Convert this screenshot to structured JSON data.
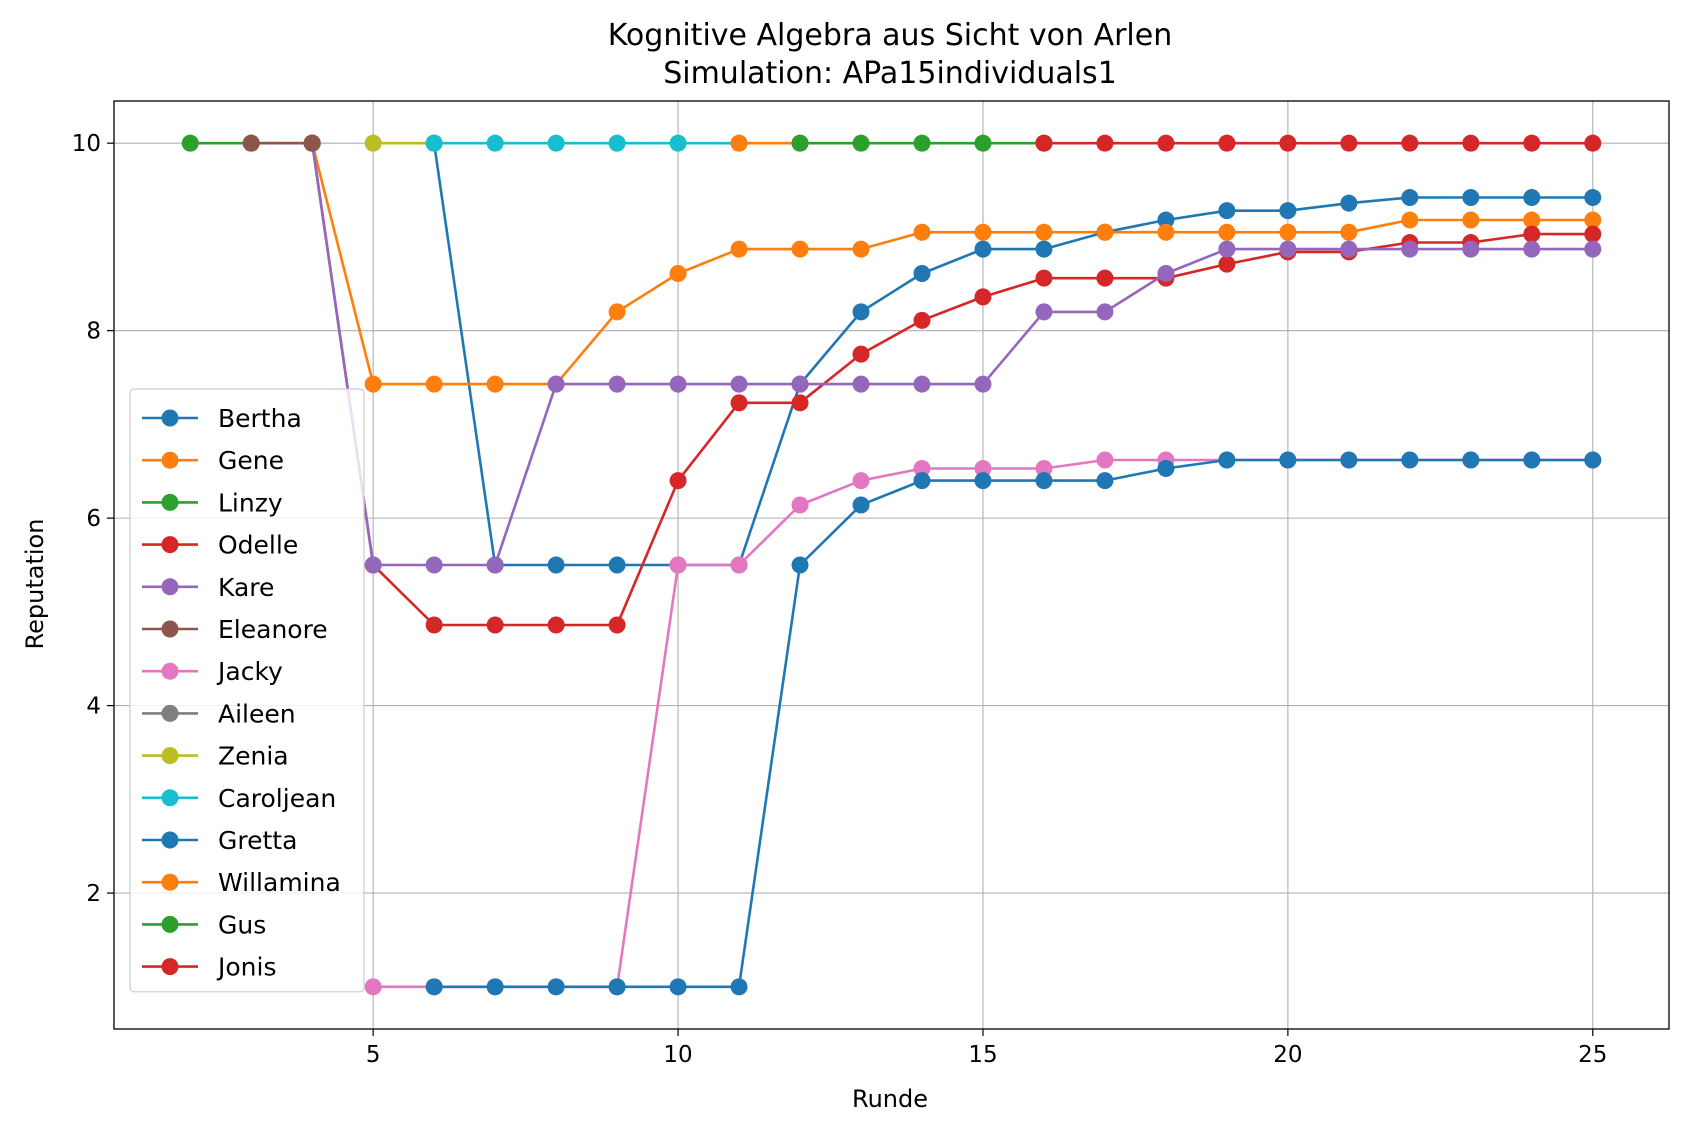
{
  "chart_data": {
    "type": "line",
    "title": "Kognitive Algebra aus Sicht von Arlen",
    "subtitle": "Simulation: APa15individuals1",
    "xlabel": "Runde",
    "ylabel": "Reputation",
    "xlim": [
      0.75,
      26.25
    ],
    "ylim": [
      0.55,
      10.45
    ],
    "xticks": [
      5,
      10,
      15,
      20,
      25
    ],
    "yticks": [
      2,
      4,
      6,
      8,
      10
    ],
    "grid": true,
    "legend_position": "lower left",
    "series": [
      {
        "name": "Bertha",
        "color": "#1f77b4",
        "x": [
          6,
          7,
          8,
          9,
          10,
          11,
          12,
          13,
          14,
          15,
          16,
          17,
          18,
          19,
          20,
          21,
          22,
          23,
          24,
          25
        ],
        "y": [
          10,
          5.5,
          5.5,
          5.5,
          5.5,
          5.5,
          7.43,
          8.2,
          8.61,
          8.87,
          8.87,
          9.05,
          9.18,
          9.28,
          9.28,
          9.36,
          9.42,
          9.42,
          9.42,
          9.42
        ]
      },
      {
        "name": "Gene",
        "color": "#ff7f0e",
        "x": [
          4,
          5,
          6,
          7,
          8,
          9,
          10,
          11,
          12,
          13,
          14,
          15,
          16,
          17,
          18,
          19,
          20,
          21,
          22,
          23,
          24,
          25
        ],
        "y": [
          10,
          7.43,
          7.43,
          7.43,
          7.43,
          8.2,
          8.61,
          8.87,
          8.87,
          8.87,
          9.05,
          9.05,
          9.05,
          9.05,
          9.05,
          9.05,
          9.05,
          9.05,
          9.18,
          9.18,
          9.18,
          9.18
        ]
      },
      {
        "name": "Linzy",
        "color": "#2ca02c",
        "x": [
          2,
          3,
          4
        ],
        "y": [
          10,
          10,
          10
        ]
      },
      {
        "name": "Odelle",
        "color": "#d62728",
        "x": [
          4,
          5,
          6,
          7,
          8,
          9,
          10,
          11,
          12,
          13,
          14,
          15,
          16,
          17,
          18,
          19,
          20,
          21,
          22,
          23,
          24,
          25
        ],
        "y": [
          10,
          5.5,
          4.86,
          4.86,
          4.86,
          4.86,
          6.4,
          7.23,
          7.23,
          7.75,
          8.11,
          8.36,
          8.56,
          8.56,
          8.56,
          8.71,
          8.84,
          8.84,
          8.94,
          8.94,
          9.03,
          9.03
        ]
      },
      {
        "name": "Kare",
        "color": "#9467bd",
        "x": [
          4,
          5,
          6,
          7,
          8,
          9,
          10,
          11,
          12,
          13,
          14,
          15,
          16,
          17,
          18,
          19,
          20,
          21,
          22,
          23,
          24,
          25
        ],
        "y": [
          10,
          5.5,
          5.5,
          5.5,
          7.43,
          7.43,
          7.43,
          7.43,
          7.43,
          7.43,
          7.43,
          7.43,
          8.2,
          8.2,
          8.61,
          8.87,
          8.87,
          8.87,
          8.87,
          8.87,
          8.87,
          8.87
        ]
      },
      {
        "name": "Eleanore",
        "color": "#8c564b",
        "x": [
          3,
          4
        ],
        "y": [
          10,
          10
        ]
      },
      {
        "name": "Jacky",
        "color": "#e377c2",
        "x": [
          5,
          6,
          7,
          8,
          9,
          10,
          11,
          12,
          13,
          14,
          15,
          16,
          17,
          18,
          19,
          20,
          21,
          22,
          23,
          24,
          25
        ],
        "y": [
          1,
          1,
          1,
          1,
          1,
          5.5,
          5.5,
          6.14,
          6.4,
          6.53,
          6.53,
          6.53,
          6.62,
          6.62,
          6.62,
          6.62,
          6.62,
          6.62,
          6.62,
          6.62,
          6.62
        ]
      },
      {
        "name": "Aileen",
        "color": "#7f7f7f",
        "x": [],
        "y": []
      },
      {
        "name": "Zenia",
        "color": "#bcbd22",
        "x": [
          5,
          6
        ],
        "y": [
          10,
          10
        ]
      },
      {
        "name": "Caroljean",
        "color": "#17becf",
        "x": [
          6,
          7,
          8,
          9,
          10,
          11
        ],
        "y": [
          10,
          10,
          10,
          10,
          10,
          10
        ]
      },
      {
        "name": "Gretta",
        "color": "#1f77b4",
        "x": [
          6,
          7,
          8,
          9,
          10,
          11,
          12,
          13,
          14,
          15,
          16,
          17,
          18,
          19,
          20,
          21,
          22,
          23,
          24,
          25
        ],
        "y": [
          1,
          1,
          1,
          1,
          1,
          1,
          5.5,
          6.14,
          6.4,
          6.4,
          6.4,
          6.4,
          6.53,
          6.62,
          6.62,
          6.62,
          6.62,
          6.62,
          6.62,
          6.62
        ]
      },
      {
        "name": "Willamina",
        "color": "#ff7f0e",
        "x": [
          11,
          12
        ],
        "y": [
          10,
          10
        ]
      },
      {
        "name": "Gus",
        "color": "#2ca02c",
        "x": [
          12,
          13,
          14,
          15,
          16
        ],
        "y": [
          10,
          10,
          10,
          10,
          10
        ]
      },
      {
        "name": "Jonis",
        "color": "#d62728",
        "x": [
          16,
          17,
          18,
          19,
          20,
          21,
          22,
          23,
          24,
          25
        ],
        "y": [
          10,
          10,
          10,
          10,
          10,
          10,
          10,
          10,
          10,
          10
        ]
      }
    ]
  }
}
